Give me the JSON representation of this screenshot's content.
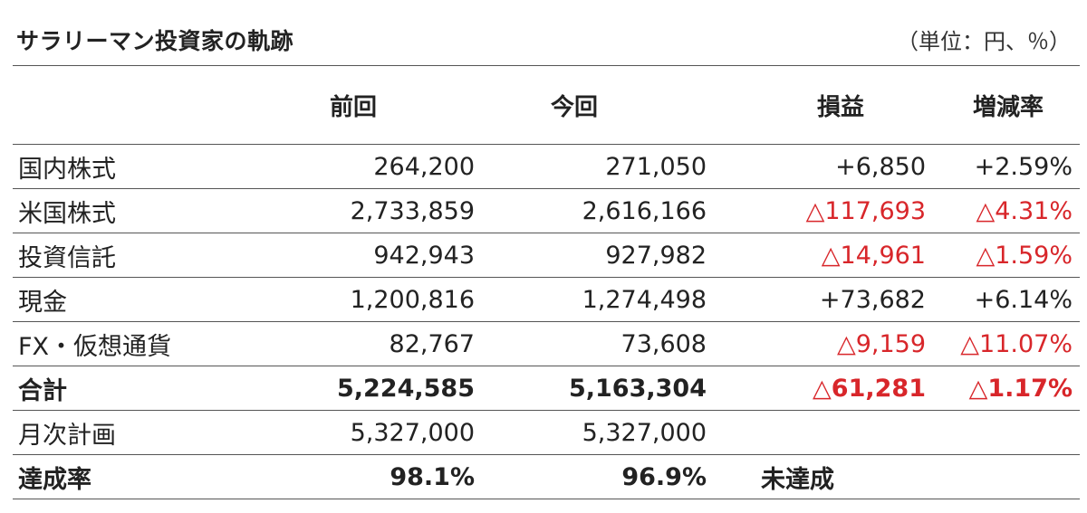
{
  "title": "サラリーマン投資家の軌跡",
  "unit_note": "（単位：円、％）",
  "columns": {
    "previous": "前回",
    "current": "今回",
    "profit_loss": "損益",
    "change_rate": "増減率"
  },
  "rows": [
    {
      "label": "国内株式",
      "previous": "264,200",
      "current": "271,050",
      "profit_loss": "+6,850",
      "change_rate": "+2.59%",
      "negative": false
    },
    {
      "label": "米国株式",
      "previous": "2,733,859",
      "current": "2,616,166",
      "profit_loss": "△117,693",
      "change_rate": "△4.31%",
      "negative": true
    },
    {
      "label": "投資信託",
      "previous": "942,943",
      "current": "927,982",
      "profit_loss": "△14,961",
      "change_rate": "△1.59%",
      "negative": true
    },
    {
      "label": "現金",
      "previous": "1,200,816",
      "current": "1,274,498",
      "profit_loss": "+73,682",
      "change_rate": "+6.14%",
      "negative": false
    },
    {
      "label": "FX・仮想通貨",
      "previous": "82,767",
      "current": "73,608",
      "profit_loss": "△9,159",
      "change_rate": "△11.07%",
      "negative": true
    }
  ],
  "total": {
    "label": "合計",
    "previous": "5,224,585",
    "current": "5,163,304",
    "profit_loss": "△61,281",
    "change_rate": "△1.17%"
  },
  "plan": {
    "label": "月次計画",
    "previous": "5,327,000",
    "current": "5,327,000"
  },
  "achievement": {
    "label": "達成率",
    "previous": "98.1%",
    "current": "96.9%",
    "status": "未達成"
  },
  "colors": {
    "negative": "#d8262a",
    "text": "#222222",
    "rule": "#555555"
  }
}
